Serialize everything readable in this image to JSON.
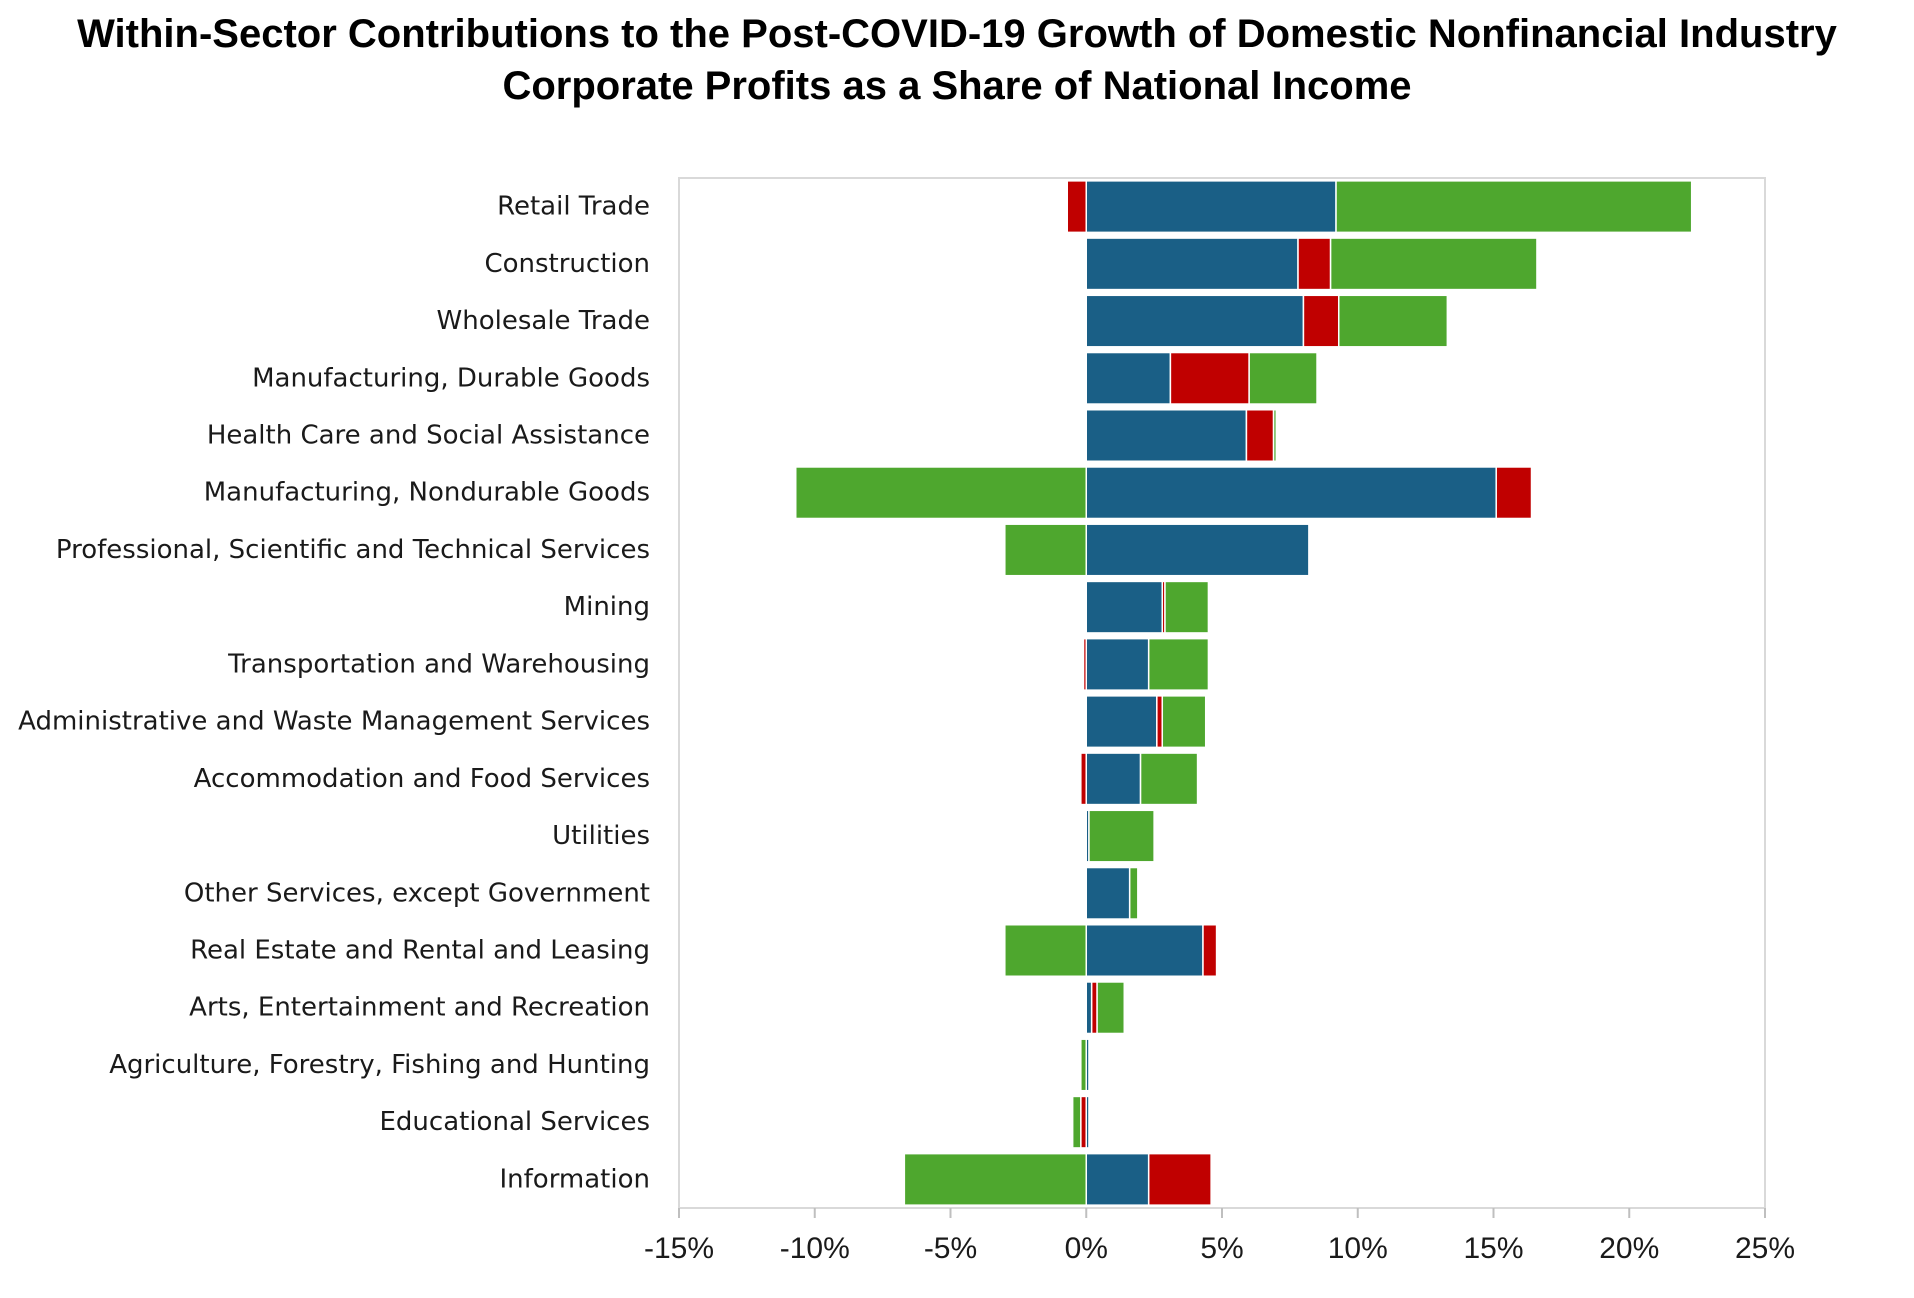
{
  "chart_data": {
    "type": "bar",
    "orientation": "horizontal",
    "stacked": true,
    "title_line1": "Within-Sector Contributions to the Post-COVID-19 Growth of Domestic Nonfinancial Industry",
    "title_line2": "Corporate Profits as a Share of National Income",
    "categories": [
      "Retail Trade",
      "Construction",
      "Wholesale Trade",
      "Manufacturing, Durable Goods",
      "Health Care and Social Assistance",
      "Manufacturing, Nondurable Goods",
      "Professional, Scientific and Technical Services",
      "Mining",
      "Transportation and Warehousing",
      "Administrative and Waste Management Services",
      "Accommodation and Food Services",
      "Utilities",
      "Other Services, except Government",
      "Real Estate and Rental and Leasing",
      "Arts, Entertainment and Recreation",
      "Agriculture, Forestry, Fishing and Hunting",
      "Educational Services",
      "Information"
    ],
    "series": [
      {
        "color": "#1a5f86",
        "values": [
          9.2,
          7.8,
          8.0,
          3.1,
          5.9,
          15.1,
          8.2,
          2.8,
          2.3,
          2.6,
          2.0,
          0.1,
          1.6,
          4.3,
          0.2,
          0.1,
          0.1,
          2.3
        ]
      },
      {
        "color": "#c00000",
        "values": [
          -0.7,
          1.2,
          1.3,
          2.9,
          1.0,
          1.3,
          0.0,
          0.1,
          -0.1,
          0.2,
          -0.2,
          0.0,
          0.0,
          0.5,
          0.2,
          0.0,
          -0.2,
          2.3
        ]
      },
      {
        "color": "#4ea72e",
        "values": [
          13.1,
          7.6,
          4.0,
          2.5,
          0.1,
          -10.7,
          -3.0,
          1.6,
          2.2,
          1.6,
          2.1,
          2.4,
          0.3,
          -3.0,
          1.0,
          -0.2,
          -0.3,
          -6.7
        ]
      }
    ],
    "xlim": [
      -15,
      25
    ],
    "xticks": [
      -15,
      -10,
      -5,
      0,
      5,
      10,
      15,
      20,
      25
    ],
    "tick_format": "percent",
    "grid": false
  }
}
